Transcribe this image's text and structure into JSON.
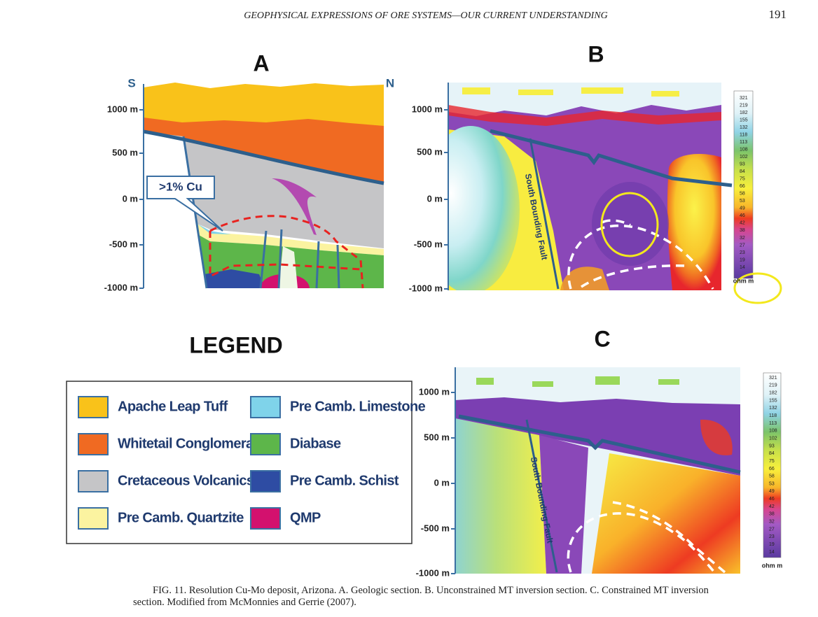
{
  "header": {
    "title": "GEOPHYSICAL EXPRESSIONS OF ORE SYSTEMS—OUR CURRENT UNDERSTANDING",
    "page": "191"
  },
  "panels": [
    {
      "label": "A",
      "left_label": "S",
      "right_label": "N",
      "yticks": [
        "1000 m",
        "500 m",
        "0 m",
        "-500 m",
        "-1000 m"
      ],
      "callout": ">1% Cu"
    },
    {
      "label": "B",
      "yticks": [
        "1000 m",
        "500 m",
        "0 m",
        "-500 m",
        "-1000 m"
      ],
      "fault_label": "South Bounding Fault",
      "scale": [
        "321",
        "219",
        "182",
        "155",
        "132",
        "118",
        "113",
        "108",
        "102",
        "93",
        "84",
        "75",
        "66",
        "58",
        "53",
        "49",
        "46",
        "42",
        "38",
        "32",
        "27",
        "23",
        "19",
        "14"
      ],
      "scale_unit": "ohm m"
    },
    {
      "label": "C",
      "yticks": [
        "1000 m",
        "500 m",
        "0 m",
        "-500 m",
        "-1000 m"
      ],
      "fault_label": "South Bounding Fault",
      "scale": [
        "321",
        "219",
        "182",
        "155",
        "132",
        "118",
        "113",
        "108",
        "102",
        "93",
        "84",
        "75",
        "66",
        "58",
        "53",
        "49",
        "46",
        "42",
        "38",
        "32",
        "27",
        "23",
        "19",
        "14"
      ],
      "scale_unit": "ohm m"
    }
  ],
  "legend": {
    "title": "LEGEND",
    "items": [
      "Apache Leap Tuff",
      "Whitetail Conglomerate",
      "Cretaceous Volcanics",
      "Pre Camb. Quartzite",
      "Pre Camb. Limestone",
      "Diabase",
      "Pre Camb. Schist",
      "QMP"
    ]
  },
  "caption": {
    "label": "FIG. 11.",
    "text": "Resolution Cu-Mo deposit, Arizona. A. Geologic section. B. Unconstrained MT inversion section. C. Constrained MT inversion section. Modified from McMonnies and Gerrie (2007)."
  }
}
